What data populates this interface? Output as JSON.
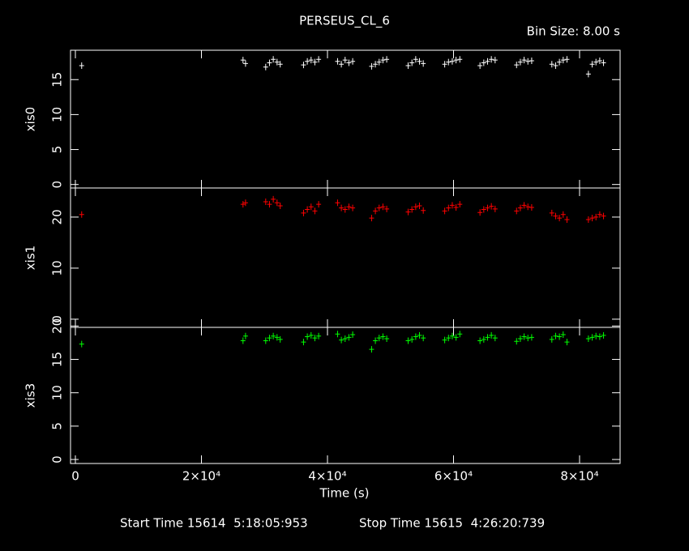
{
  "chart_data": [
    {
      "type": "scatter",
      "title": "PERSEUS_CL_6",
      "subtitle": "Bin Size: 8.00 s",
      "ylabel": "xis0",
      "color": "#ffffff",
      "x": [
        1000,
        26600,
        27000,
        30200,
        30800,
        31400,
        32000,
        32500,
        36200,
        36800,
        37400,
        38000,
        38600,
        41600,
        42200,
        42800,
        43400,
        44000,
        47000,
        47600,
        48200,
        48800,
        49400,
        52800,
        53400,
        54000,
        54600,
        55200,
        58600,
        59200,
        59800,
        60400,
        61000,
        64200,
        64800,
        65400,
        66000,
        66600,
        70000,
        70600,
        71200,
        71800,
        72400,
        75600,
        76200,
        76800,
        77400,
        78000,
        81400,
        82000,
        82600,
        83200,
        83800
      ],
      "values": [
        17.0,
        17.8,
        17.3,
        16.8,
        17.4,
        17.9,
        17.5,
        17.2,
        17.1,
        17.6,
        17.8,
        17.5,
        17.9,
        17.6,
        17.2,
        17.8,
        17.4,
        17.6,
        16.9,
        17.2,
        17.5,
        17.8,
        17.9,
        17.0,
        17.4,
        17.9,
        17.6,
        17.3,
        17.2,
        17.5,
        17.6,
        17.8,
        17.9,
        17.0,
        17.4,
        17.6,
        17.9,
        17.8,
        17.1,
        17.5,
        17.8,
        17.6,
        17.7,
        17.2,
        17.0,
        17.5,
        17.8,
        17.9,
        15.8,
        17.2,
        17.5,
        17.7,
        17.4
      ],
      "xlim": [
        -770,
        86430
      ],
      "ylim": [
        -0.5,
        19.2
      ],
      "yticks": [
        0,
        5,
        10,
        15
      ]
    },
    {
      "type": "scatter",
      "ylabel": "xis1",
      "color": "#ff0000",
      "x": [
        1000,
        26600,
        27000,
        30200,
        30800,
        31400,
        32000,
        32500,
        36200,
        36800,
        37400,
        38000,
        38600,
        41600,
        42200,
        42800,
        43400,
        44000,
        47000,
        47600,
        48200,
        48800,
        49400,
        52800,
        53400,
        54000,
        54600,
        55200,
        58600,
        59200,
        59800,
        60400,
        61000,
        64200,
        64800,
        65400,
        66000,
        66600,
        70000,
        70600,
        71200,
        71800,
        72400,
        75600,
        76200,
        76800,
        77400,
        78000,
        81400,
        82000,
        82600,
        83200,
        83800
      ],
      "values": [
        20.5,
        22.5,
        22.8,
        23.0,
        22.5,
        23.5,
        22.8,
        22.2,
        20.8,
        21.5,
        22.0,
        21.2,
        22.5,
        22.8,
        21.8,
        21.5,
        22.0,
        21.8,
        19.8,
        21.2,
        21.8,
        22.0,
        21.6,
        21.0,
        21.5,
        22.0,
        22.2,
        21.3,
        21.2,
        21.8,
        22.3,
        21.9,
        22.5,
        20.9,
        21.5,
        21.8,
        22.1,
        21.6,
        21.2,
        21.8,
        22.3,
        22.0,
        21.9,
        20.8,
        20.2,
        19.8,
        20.5,
        19.5,
        19.5,
        19.8,
        20.0,
        20.5,
        20.2
      ],
      "xlim": [
        -770,
        86430
      ],
      "ylim": [
        -1.6,
        25.7
      ],
      "yticks": [
        0,
        10,
        20
      ]
    },
    {
      "type": "scatter",
      "ylabel": "xis3",
      "xlabel": "Time (s)",
      "color": "#00ff00",
      "x": [
        1000,
        26600,
        27000,
        30200,
        30800,
        31400,
        32000,
        32500,
        36200,
        36800,
        37400,
        38000,
        38600,
        41600,
        42200,
        42800,
        43400,
        44000,
        47000,
        47600,
        48200,
        48800,
        49400,
        52800,
        53400,
        54000,
        54600,
        55200,
        58600,
        59200,
        59800,
        60400,
        61000,
        64200,
        64800,
        65400,
        66000,
        66600,
        70000,
        70600,
        71200,
        71800,
        72400,
        75600,
        76200,
        76800,
        77400,
        78000,
        81400,
        82000,
        82600,
        83200,
        83800
      ],
      "values": [
        17.3,
        17.8,
        18.5,
        17.8,
        18.2,
        18.5,
        18.3,
        18.0,
        17.6,
        18.4,
        18.6,
        18.2,
        18.5,
        18.8,
        17.9,
        18.1,
        18.3,
        18.7,
        16.5,
        17.8,
        18.2,
        18.4,
        18.1,
        17.8,
        18.0,
        18.4,
        18.6,
        18.2,
        17.9,
        18.2,
        18.5,
        18.3,
        18.8,
        17.8,
        18.0,
        18.3,
        18.6,
        18.2,
        17.7,
        18.1,
        18.4,
        18.2,
        18.3,
        18.0,
        18.5,
        18.4,
        18.7,
        17.6,
        18.1,
        18.3,
        18.5,
        18.4,
        18.6
      ],
      "xlim": [
        -770,
        86430
      ],
      "ylim": [
        -0.6,
        19.8
      ],
      "yticks": [
        0,
        5,
        10,
        15,
        20
      ],
      "xticks": [
        0,
        {
          "value": 20000,
          "label": "2×10⁴"
        },
        {
          "value": 40000,
          "label": "4×10⁴"
        },
        {
          "value": 60000,
          "label": "6×10⁴"
        },
        {
          "value": 80000,
          "label": "8×10⁴"
        }
      ]
    }
  ],
  "footer": {
    "start": "Start Time 15614  5:18:05:953",
    "stop": "Stop Time 15615  4:26:20:739"
  }
}
